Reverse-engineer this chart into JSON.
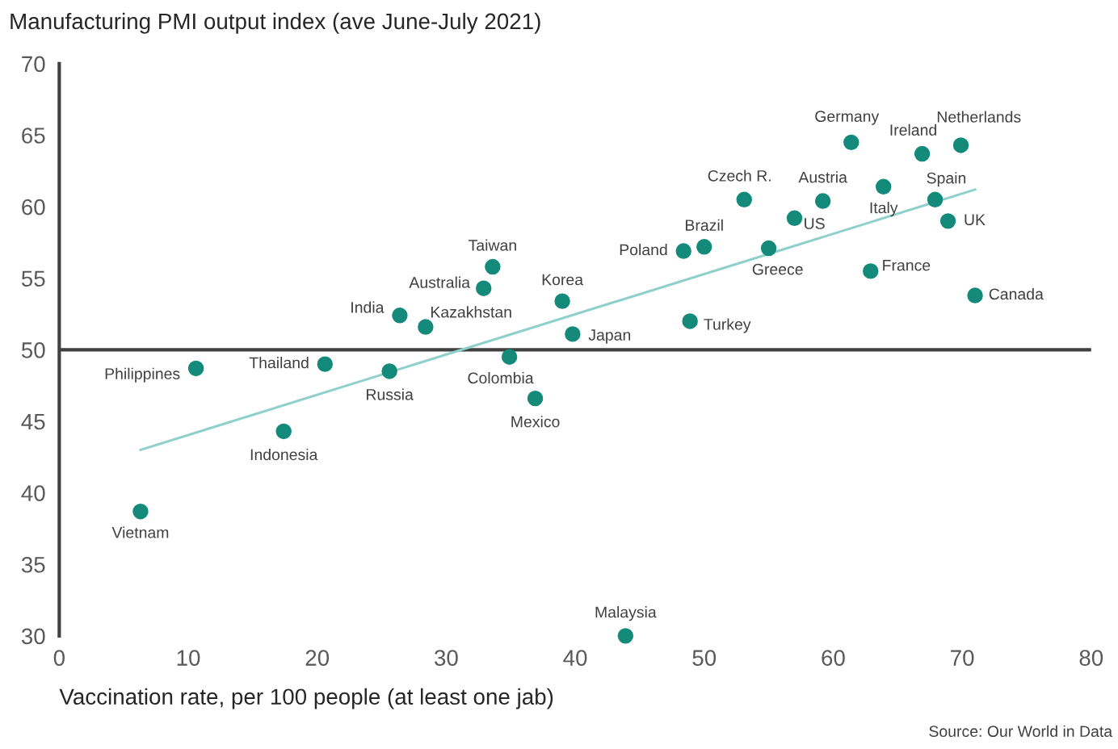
{
  "chart_data": {
    "type": "scatter",
    "title": "Manufacturing PMI output index (ave June-July 2021)",
    "xlabel": "Vaccination rate, per 100 people (at least one jab)",
    "xlim": [
      0,
      80
    ],
    "xticks": [
      0,
      10,
      20,
      30,
      40,
      50,
      60,
      70,
      80
    ],
    "ylim": [
      30,
      70
    ],
    "yticks": [
      30,
      35,
      40,
      45,
      50,
      55,
      60,
      65,
      70
    ],
    "grid": false,
    "series": [
      {
        "type": "scatter",
        "marker": "circle",
        "color": "#138a7a",
        "x": [
          6.3,
          10.6,
          17.4,
          20.6,
          25.6,
          26.4,
          28.4,
          32.9,
          33.6,
          34.9,
          36.9,
          39.0,
          39.8,
          43.9,
          48.9,
          48.4,
          50.0,
          53.1,
          55.0,
          57.0,
          59.2,
          61.4,
          62.9,
          63.9,
          66.9,
          67.9,
          68.9,
          69.9,
          71.0
        ],
        "values": [
          38.7,
          48.7,
          44.3,
          49.0,
          48.5,
          52.4,
          51.6,
          54.3,
          55.8,
          49.5,
          46.6,
          53.4,
          51.1,
          30.0,
          52.0,
          56.9,
          57.2,
          60.5,
          57.1,
          59.2,
          60.4,
          64.5,
          55.5,
          61.4,
          63.7,
          60.5,
          59.0,
          64.3,
          53.8
        ]
      },
      {
        "type": "line",
        "color": "#8fd0cc",
        "x": [
          6.3,
          71.0
        ],
        "values": [
          43.0,
          61.2
        ]
      }
    ],
    "ref_lines": [
      {
        "axis": "y",
        "value": 50,
        "color": "#404040"
      }
    ],
    "annotations": [
      {
        "text": "Vietnam",
        "x": 6.3,
        "y": 38.7
      },
      {
        "text": "Philippines",
        "x": 10.6,
        "y": 48.7
      },
      {
        "text": "Indonesia",
        "x": 17.4,
        "y": 44.3
      },
      {
        "text": "Thailand",
        "x": 20.6,
        "y": 49.0
      },
      {
        "text": "Russia",
        "x": 25.6,
        "y": 48.5
      },
      {
        "text": "India",
        "x": 26.4,
        "y": 52.4
      },
      {
        "text": "Kazakhstan",
        "x": 28.4,
        "y": 51.6
      },
      {
        "text": "Australia",
        "x": 32.9,
        "y": 54.3
      },
      {
        "text": "Taiwan",
        "x": 33.6,
        "y": 55.8
      },
      {
        "text": "Colombia",
        "x": 34.9,
        "y": 49.5
      },
      {
        "text": "Mexico",
        "x": 36.9,
        "y": 46.6
      },
      {
        "text": "Korea",
        "x": 39.0,
        "y": 53.4
      },
      {
        "text": "Japan",
        "x": 39.8,
        "y": 51.1
      },
      {
        "text": "Malaysia",
        "x": 43.9,
        "y": 30.0
      },
      {
        "text": "Turkey",
        "x": 48.9,
        "y": 52.0
      },
      {
        "text": "Poland",
        "x": 48.4,
        "y": 56.9
      },
      {
        "text": "Brazil",
        "x": 50.0,
        "y": 57.2
      },
      {
        "text": "Czech R.",
        "x": 53.1,
        "y": 60.5
      },
      {
        "text": "Greece",
        "x": 55.0,
        "y": 57.1
      },
      {
        "text": "US",
        "x": 57.0,
        "y": 59.2
      },
      {
        "text": "Austria",
        "x": 59.2,
        "y": 60.4
      },
      {
        "text": "Germany",
        "x": 61.4,
        "y": 64.5
      },
      {
        "text": "France",
        "x": 62.9,
        "y": 55.5
      },
      {
        "text": "Italy",
        "x": 63.9,
        "y": 61.4
      },
      {
        "text": "Ireland",
        "x": 66.9,
        "y": 63.7
      },
      {
        "text": "Spain",
        "x": 67.9,
        "y": 60.5
      },
      {
        "text": "UK",
        "x": 68.9,
        "y": 59.0
      },
      {
        "text": "Netherlands",
        "x": 69.9,
        "y": 64.3
      },
      {
        "text": "Canada",
        "x": 71.0,
        "y": 53.8
      },
      "Source: Our World in Data"
    ]
  }
}
